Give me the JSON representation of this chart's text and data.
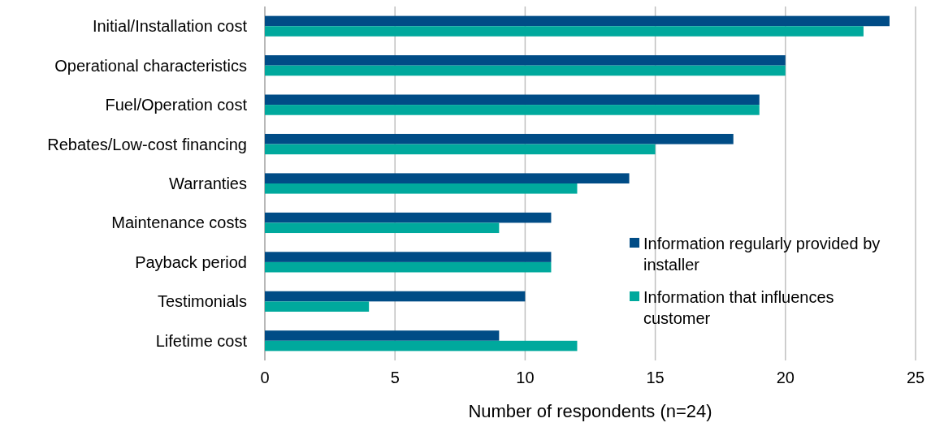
{
  "chart_data": {
    "type": "bar",
    "orientation": "horizontal",
    "xlabel": "Number of respondents (n=24)",
    "categories": [
      "Initial/Installation cost",
      "Operational characteristics",
      "Fuel/Operation cost",
      "Rebates/Low-cost financing",
      "Warranties",
      "Maintenance costs",
      "Payback period",
      "Testimonials",
      "Lifetime cost"
    ],
    "series": [
      {
        "name": "Information regularly provided by installer",
        "color": "#004c86",
        "values": [
          24,
          20,
          19,
          18,
          14,
          11,
          11,
          10,
          9
        ]
      },
      {
        "name": "Information that influences customer",
        "color": "#00a99d",
        "values": [
          23,
          20,
          19,
          15,
          12,
          9,
          11,
          4,
          12
        ]
      }
    ],
    "xlim": [
      0,
      25
    ],
    "xticks": [
      0,
      5,
      10,
      15,
      20,
      25
    ],
    "grid": "x",
    "legend": "bottom right"
  }
}
